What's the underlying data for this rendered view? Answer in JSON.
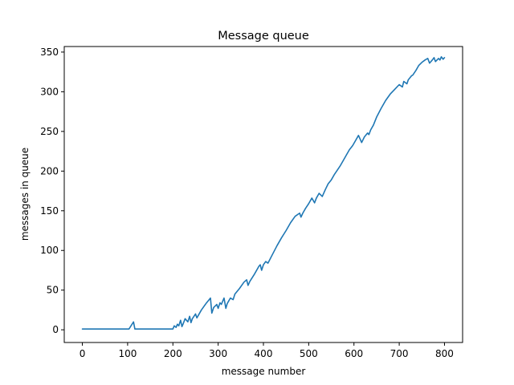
{
  "chart_data": {
    "type": "line",
    "title": "Message queue",
    "xlabel": "message number",
    "ylabel": "messages in queue",
    "xlim": [
      -40,
      840
    ],
    "ylim": [
      -16,
      357
    ],
    "xticks": [
      0,
      100,
      200,
      300,
      400,
      500,
      600,
      700,
      800
    ],
    "yticks": [
      0,
      50,
      100,
      150,
      200,
      250,
      300,
      350
    ],
    "grid": false,
    "series": [
      {
        "color": "#1f77b4",
        "x": [
          0,
          103,
          113,
          116,
          200,
          203,
          207,
          210,
          213,
          217,
          220,
          223,
          227,
          233,
          237,
          240,
          243,
          250,
          253,
          263,
          273,
          283,
          286,
          290,
          297,
          300,
          304,
          307,
          313,
          317,
          320,
          323,
          327,
          333,
          337,
          347,
          357,
          363,
          366,
          370,
          380,
          390,
          393,
          396,
          400,
          405,
          410,
          420,
          430,
          440,
          450,
          460,
          470,
          480,
          483,
          487,
          493,
          500,
          507,
          513,
          517,
          523,
          530,
          537,
          543,
          550,
          557,
          563,
          570,
          577,
          583,
          590,
          597,
          603,
          610,
          617,
          623,
          630,
          633,
          637,
          643,
          650,
          660,
          670,
          680,
          690,
          700,
          707,
          710,
          717,
          720,
          727,
          730,
          737,
          743,
          750,
          757,
          763,
          767,
          773,
          777,
          780,
          787,
          790,
          793,
          797,
          800
        ],
        "values": [
          1,
          1,
          10,
          1,
          1,
          5,
          3,
          7,
          5,
          12,
          4,
          8,
          14,
          10,
          17,
          9,
          14,
          20,
          15,
          25,
          33,
          40,
          21,
          28,
          32,
          27,
          34,
          32,
          40,
          27,
          33,
          36,
          40,
          38,
          45,
          52,
          60,
          63,
          56,
          61,
          70,
          80,
          82,
          75,
          82,
          86,
          84,
          95,
          106,
          116,
          125,
          135,
          143,
          147,
          142,
          147,
          153,
          159,
          166,
          160,
          166,
          172,
          168,
          177,
          184,
          189,
          196,
          201,
          207,
          214,
          220,
          227,
          232,
          238,
          245,
          236,
          243,
          248,
          246,
          252,
          258,
          268,
          279,
          289,
          297,
          303,
          309,
          306,
          313,
          310,
          315,
          320,
          321,
          327,
          333,
          337,
          340,
          342,
          336,
          340,
          343,
          338,
          342,
          340,
          344,
          341,
          343
        ]
      }
    ]
  }
}
